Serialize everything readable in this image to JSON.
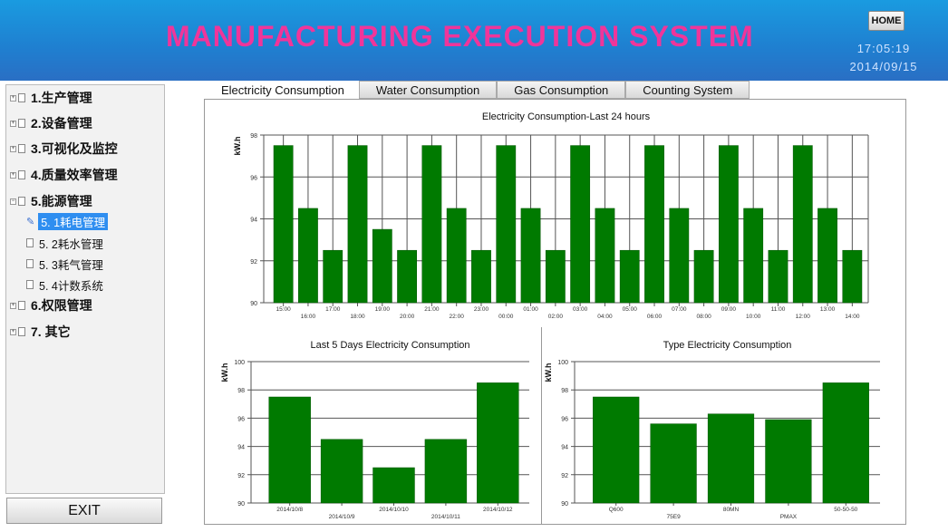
{
  "header": {
    "title": "MANUFACTURING EXECUTION SYSTEM",
    "home_label": "HOME",
    "time": "17:05:19",
    "date": "2014/09/15"
  },
  "sidebar": {
    "items": [
      {
        "label": "1.生产管理",
        "level": 0
      },
      {
        "label": "2.设备管理",
        "level": 0
      },
      {
        "label": "3.可视化及监控",
        "level": 0
      },
      {
        "label": "4.质量效率管理",
        "level": 0
      },
      {
        "label": "5.能源管理",
        "level": 0,
        "expanded": true
      },
      {
        "label": "5. 1耗电管理",
        "level": 1,
        "selected": true
      },
      {
        "label": "5. 2耗水管理",
        "level": 1
      },
      {
        "label": "5. 3耗气管理",
        "level": 1
      },
      {
        "label": "5. 4计数系统",
        "level": 1
      },
      {
        "label": "6.权限管理",
        "level": 0
      },
      {
        "label": "7. 其它",
        "level": 0
      }
    ],
    "exit_label": "EXIT"
  },
  "tabs": [
    {
      "label": "Electricity Consumption",
      "active": true
    },
    {
      "label": "Water Consumption"
    },
    {
      "label": "Gas Consumption"
    },
    {
      "label": "Counting System"
    }
  ],
  "colors": {
    "bar": "#007a00",
    "title": "#f0359a",
    "header": "#1f7fd0",
    "selected": "#2f8ef0"
  },
  "chart_data": [
    {
      "type": "bar",
      "title": "Electricity Consumption-Last 24 hours",
      "ylabel": "kW.h",
      "ylim": [
        90,
        98
      ],
      "yticks": [
        90,
        92,
        94,
        96,
        98
      ],
      "grid": "both",
      "categories": [
        "15:00",
        "16:00",
        "17:00",
        "18:00",
        "19:00",
        "20:00",
        "21:00",
        "22:00",
        "23:00",
        "00:00",
        "01:00",
        "02:00",
        "03:00",
        "04:00",
        "05:00",
        "06:00",
        "07:00",
        "08:00",
        "09:00",
        "10:00",
        "11:00",
        "12:00",
        "13:00",
        "14:00"
      ],
      "values": [
        97.5,
        94.5,
        92.5,
        97.5,
        93.5,
        92.5,
        97.5,
        94.5,
        92.5,
        97.5,
        94.5,
        92.5,
        97.5,
        94.5,
        92.5,
        97.5,
        94.5,
        92.5,
        97.5,
        94.5,
        92.5,
        97.5,
        94.5,
        92.5
      ]
    },
    {
      "type": "bar",
      "title": "Last 5 Days Electricity Consumption",
      "ylabel": "kW.h",
      "ylim": [
        90,
        100
      ],
      "yticks": [
        90,
        92,
        94,
        96,
        98,
        100
      ],
      "grid": "horizontal",
      "categories": [
        "2014/10/8",
        "2014/10/9",
        "2014/10/10",
        "2014/10/11",
        "2014/10/12"
      ],
      "values": [
        97.5,
        94.5,
        92.5,
        94.5,
        98.5
      ]
    },
    {
      "type": "bar",
      "title": "Type Electricity Consumption",
      "ylabel": "kW.h",
      "ylim": [
        90,
        100
      ],
      "yticks": [
        90,
        92,
        94,
        96,
        98,
        100
      ],
      "grid": "horizontal",
      "categories": [
        "Q600",
        "75E9",
        "80MN",
        "PMAX",
        "50-50-50"
      ],
      "values": [
        97.5,
        95.6,
        96.3,
        95.9,
        98.5
      ]
    }
  ]
}
